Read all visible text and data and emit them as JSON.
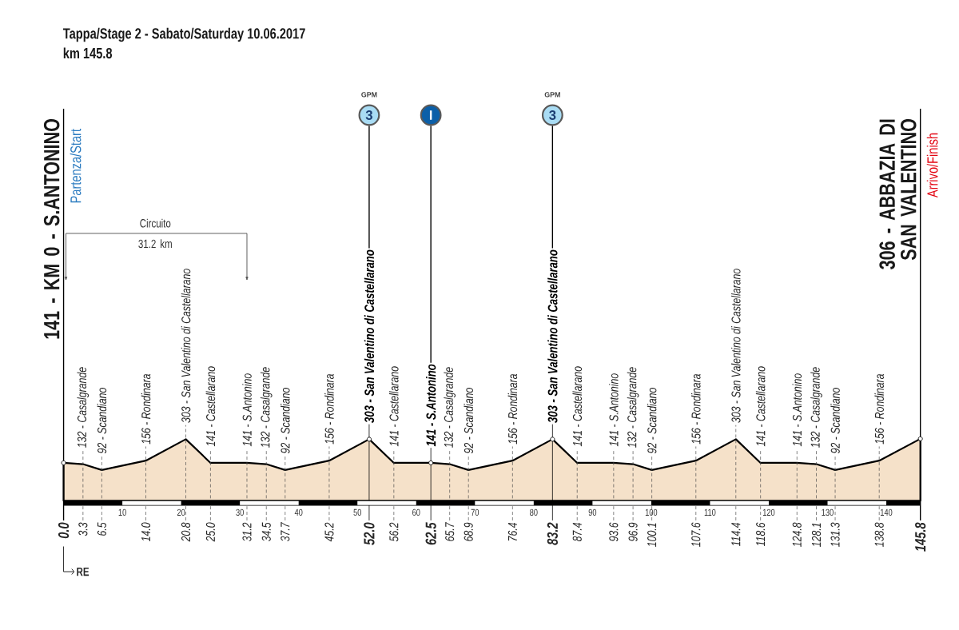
{
  "chart_data": {
    "type": "area",
    "title": "Tappa/Stage 2 - Sabato/Saturday  10.06.2017",
    "subtitle": "km 145.8",
    "x": [
      0.0,
      3.3,
      6.5,
      14.0,
      20.8,
      25.0,
      31.2,
      34.5,
      37.7,
      45.2,
      52.0,
      56.2,
      62.5,
      65.7,
      68.9,
      76.4,
      83.2,
      87.4,
      93.6,
      96.9,
      100.1,
      107.6,
      114.4,
      118.6,
      124.8,
      128.1,
      131.3,
      138.8,
      145.8
    ],
    "values": [
      141,
      132,
      92,
      156,
      303,
      141,
      141,
      132,
      92,
      156,
      303,
      141,
      141,
      132,
      92,
      156,
      303,
      141,
      141,
      132,
      92,
      156,
      303,
      141,
      141,
      132,
      92,
      156,
      306
    ],
    "value_labels": [
      null,
      "132 - Casalgrande",
      "92 - Scandiano",
      "156 - Rondinara",
      "303 - San Valentino di Castellarano",
      "141 - Castellarano",
      "141 - S.Antonino",
      "132 - Casalgrande",
      "92 - Scandiano",
      "156 - Rondinara",
      null,
      "141 - Castellarano",
      null,
      "132 - Casalgrande",
      "92 - Scandiano",
      "156 - Rondinara",
      null,
      "141 - Castellarano",
      "141 - S.Antonino",
      "132 - Casalgrande",
      "92 - Scandiano",
      "156 - Rondinara",
      "303 - San Valentino di Castellarano",
      "141 - Castellarano",
      "141 - S.Antonino",
      "132 - Casalgrande",
      "92 - Scandiano",
      "156 - Rondinara",
      null
    ],
    "color": "#f5e1c9",
    "grid": "x",
    "xlim": [
      0.0,
      145.8
    ],
    "xticks": [
      {
        "value": 0.0,
        "label": "0.0"
      },
      3.3,
      6.5,
      {
        "value": 14.0,
        "label": "14.0"
      },
      20.8,
      {
        "value": 25.0,
        "label": "25.0"
      },
      31.2,
      34.5,
      37.7,
      45.2,
      {
        "value": 52.0,
        "label": "52.0"
      },
      56.2,
      62.5,
      65.7,
      68.9,
      76.4,
      83.2,
      87.4,
      93.6,
      96.9,
      100.1,
      107.6,
      114.4,
      118.6,
      124.8,
      128.1,
      131.3,
      138.8,
      145.8
    ],
    "x2lim": [
      0.0,
      145.8
    ],
    "x2ticks": [
      10,
      20,
      30,
      40,
      50,
      60,
      70,
      80,
      90,
      100,
      110,
      120,
      130,
      140
    ],
    "ref_lines": [
      {
        "axis": "x",
        "value": 0.0,
        "label": "141  -  KM 0 - S.ANTONINO"
      },
      {
        "axis": "x",
        "value": 52.0,
        "label": "303 - San Valentino di Castellarano"
      },
      {
        "axis": "x",
        "value": 62.5,
        "label": "141 - S.Antonino"
      },
      {
        "axis": "x",
        "value": 83.2,
        "label": "303 - San Valentino di Castellarano"
      },
      {
        "axis": "x",
        "value": 145.8,
        "label": "306 - ABBAZIA DI SAN VALENTINO"
      }
    ],
    "annotations": [
      "Partenza/Start",
      "Arrivo/Finish",
      "RE",
      "GPM",
      "3",
      "I",
      "GPM",
      "3",
      "Circuito 31.2 km"
    ]
  }
}
